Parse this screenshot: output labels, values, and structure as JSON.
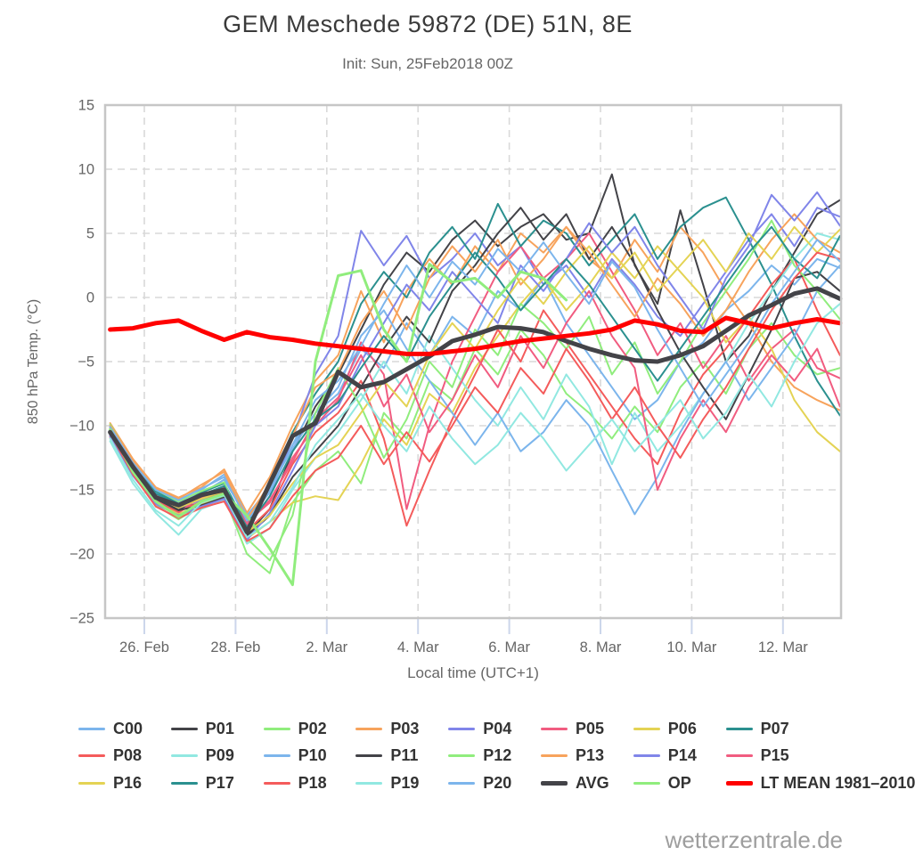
{
  "header": {
    "title": "GEM Meschede 59872 (DE) 51N, 8E",
    "subtitle": "Init: Sun, 25Feb2018 00Z"
  },
  "watermark": "wetterzentrale.de",
  "chart_data": {
    "type": "line",
    "title": "GEM Meschede 59872 (DE) 51N, 8E",
    "subtitle": "Init: Sun, 25Feb2018 00Z",
    "xlabel": "Local time (UTC+1)",
    "ylabel": "850 hPa Temp. (°C)",
    "ylim": [
      -25,
      15
    ],
    "y_ticks": [
      15,
      10,
      5,
      0,
      -5,
      -10,
      -15,
      -20,
      -25
    ],
    "x_ticks": [
      {
        "day": 1,
        "label": "26. Feb"
      },
      {
        "day": 3,
        "label": "28. Feb"
      },
      {
        "day": 5,
        "label": "2. Mar"
      },
      {
        "day": 7,
        "label": "4. Mar"
      },
      {
        "day": 9,
        "label": "6. Mar"
      },
      {
        "day": 11,
        "label": "8. Mar"
      },
      {
        "day": 13,
        "label": "10. Mar"
      },
      {
        "day": 15,
        "label": "12. Mar"
      }
    ],
    "x_axis": {
      "unit": "days from 25 Feb 2018",
      "start_day": 0.25,
      "step_day": 0.5,
      "range_days": [
        0.14,
        16.27
      ]
    },
    "grid": "dashed",
    "legend_position": "bottom",
    "series": [
      {
        "name": "C00",
        "color": "#7cb5ec",
        "line_width": 2,
        "role": "member",
        "values": [
          -10.2,
          -13.0,
          -15.2,
          -16.0,
          -15.3,
          -14.2,
          -17.2,
          -15.0,
          -11.5,
          -9.0,
          -7.5,
          -4.0,
          -5.5,
          -2.0,
          -4.5,
          -1.5,
          -3.0,
          0.5,
          -1.0,
          1.5,
          -2.0,
          -4.5,
          -7.0,
          -9.5,
          -8.0,
          -5.0,
          -3.5,
          -1.0,
          0.5,
          2.5,
          1.0,
          3.0,
          2.3
        ]
      },
      {
        "name": "P01",
        "color": "#434348",
        "line_width": 2,
        "role": "member",
        "values": [
          -10.8,
          -13.4,
          -15.6,
          -16.5,
          -16.0,
          -15.2,
          -18.5,
          -16.5,
          -12.0,
          -8.5,
          -6.0,
          -2.5,
          1.0,
          3.5,
          2.0,
          4.5,
          6.0,
          4.0,
          5.5,
          6.5,
          4.5,
          5.0,
          9.6,
          2.5,
          -0.5,
          6.8,
          1.0,
          -5.0,
          -3.0,
          0.5,
          3.5,
          6.5,
          7.6
        ]
      },
      {
        "name": "P02",
        "color": "#90ed7d",
        "line_width": 2,
        "role": "member",
        "values": [
          -10.0,
          -13.8,
          -16.2,
          -17.3,
          -16.2,
          -15.5,
          -20.0,
          -21.5,
          -16.0,
          -13.5,
          -12.0,
          -14.5,
          -9.0,
          -11.0,
          -6.5,
          -8.0,
          -4.0,
          -6.0,
          -2.5,
          -4.5,
          -7.5,
          -9.0,
          -11.0,
          -8.5,
          -10.5,
          -7.0,
          -5.0,
          -7.5,
          -4.0,
          -2.0,
          -4.5,
          -6.0,
          -5.5
        ]
      },
      {
        "name": "P03",
        "color": "#f7a35c",
        "line_width": 2,
        "role": "member",
        "values": [
          -9.8,
          -12.6,
          -14.8,
          -15.6,
          -14.8,
          -13.4,
          -16.8,
          -14.0,
          -10.0,
          -6.5,
          -4.5,
          0.5,
          -3.5,
          0.5,
          3.0,
          1.0,
          4.0,
          2.0,
          5.0,
          3.5,
          5.5,
          3.0,
          1.5,
          4.5,
          2.0,
          5.5,
          3.5,
          0.5,
          -2.0,
          -5.0,
          -7.0,
          -8.0,
          -8.8
        ]
      },
      {
        "name": "P04",
        "color": "#8085e9",
        "line_width": 2,
        "role": "member",
        "values": [
          -10.5,
          -13.2,
          -15.5,
          -16.4,
          -15.8,
          -15.0,
          -18.0,
          -15.5,
          -11.0,
          -6.0,
          -3.0,
          5.2,
          2.5,
          4.8,
          1.5,
          3.0,
          5.0,
          2.5,
          4.0,
          1.0,
          2.5,
          0.0,
          3.0,
          1.0,
          -1.5,
          -3.0,
          -0.5,
          2.0,
          4.5,
          6.5,
          4.0,
          7.0,
          6.3
        ]
      },
      {
        "name": "P05",
        "color": "#f15c80",
        "line_width": 2,
        "role": "member",
        "values": [
          -10.3,
          -13.5,
          -15.8,
          -16.8,
          -15.5,
          -14.8,
          -17.5,
          -16.0,
          -12.5,
          -10.0,
          -8.0,
          -3.5,
          -6.0,
          -16.5,
          -10.0,
          -5.0,
          -1.5,
          2.0,
          4.0,
          1.5,
          3.0,
          5.0,
          2.0,
          -1.0,
          -4.5,
          -2.0,
          -5.5,
          -3.0,
          -6.5,
          -4.0,
          -2.5,
          -5.5,
          -6.3
        ]
      },
      {
        "name": "P06",
        "color": "#e4d354",
        "line_width": 2,
        "role": "member",
        "values": [
          -10.6,
          -13.7,
          -16.0,
          -16.9,
          -16.1,
          -15.3,
          -18.8,
          -17.5,
          -16.0,
          -15.5,
          -15.8,
          -13.0,
          -9.5,
          -11.5,
          -7.5,
          -9.0,
          -5.5,
          -3.0,
          -0.5,
          1.5,
          -1.0,
          1.0,
          3.5,
          1.5,
          4.0,
          2.0,
          0.0,
          -3.5,
          -1.5,
          -4.0,
          -8.0,
          -10.5,
          -12.0
        ]
      },
      {
        "name": "P07",
        "color": "#2b908f",
        "line_width": 2,
        "role": "member",
        "values": [
          -10.1,
          -12.9,
          -15.1,
          -16.1,
          -15.2,
          -14.5,
          -17.8,
          -14.5,
          -10.5,
          -7.5,
          -5.0,
          -0.5,
          2.0,
          0.0,
          3.5,
          5.5,
          3.0,
          7.3,
          4.0,
          6.0,
          5.0,
          2.5,
          4.5,
          6.5,
          3.0,
          5.5,
          7.0,
          7.8,
          4.5,
          1.0,
          -3.0,
          -6.5,
          -9.2
        ]
      },
      {
        "name": "P08",
        "color": "#f45b5b",
        "line_width": 2,
        "role": "member",
        "values": [
          -10.9,
          -13.6,
          -15.9,
          -16.7,
          -15.9,
          -15.1,
          -18.2,
          -16.5,
          -13.0,
          -10.5,
          -9.0,
          -6.5,
          -11.0,
          -17.8,
          -13.5,
          -9.5,
          -6.0,
          -2.5,
          -5.0,
          -1.0,
          -3.5,
          -6.0,
          -8.5,
          -11.0,
          -13.0,
          -9.0,
          -6.0,
          -4.0,
          -1.5,
          1.0,
          3.0,
          -1.0,
          -4.5
        ]
      },
      {
        "name": "P09",
        "color": "#91e8e1",
        "line_width": 2,
        "role": "member",
        "values": [
          -11.2,
          -14.5,
          -16.8,
          -18.5,
          -16.5,
          -15.8,
          -19.2,
          -18.0,
          -15.0,
          -12.5,
          -10.5,
          -8.0,
          -5.0,
          -7.5,
          -3.0,
          -5.5,
          -8.0,
          -10.0,
          -7.0,
          -9.5,
          -6.0,
          -8.5,
          -13.0,
          -9.0,
          -12.0,
          -10.0,
          -7.5,
          -5.0,
          -2.0,
          0.5,
          3.0,
          5.0,
          4.5
        ]
      },
      {
        "name": "P10",
        "color": "#7cb5ec",
        "line_width": 2,
        "role": "member",
        "values": [
          -10.4,
          -13.1,
          -15.3,
          -16.2,
          -15.0,
          -13.8,
          -17.0,
          -14.8,
          -11.8,
          -9.0,
          -7.0,
          -3.0,
          -1.0,
          -4.0,
          -6.5,
          -9.0,
          -11.5,
          -9.0,
          -12.0,
          -10.5,
          -8.0,
          -10.0,
          -13.5,
          -16.9,
          -14.0,
          -10.5,
          -7.5,
          -5.0,
          -8.0,
          -5.5,
          -3.0,
          0.5,
          2.5
        ]
      },
      {
        "name": "P11",
        "color": "#434348",
        "line_width": 2,
        "role": "member",
        "values": [
          -10.7,
          -13.3,
          -15.7,
          -16.6,
          -16.2,
          -15.6,
          -18.6,
          -17.0,
          -14.0,
          -12.0,
          -10.0,
          -7.0,
          -4.0,
          -1.5,
          -3.5,
          0.5,
          2.5,
          5.0,
          7.0,
          4.5,
          6.5,
          3.0,
          5.5,
          2.6,
          -1.0,
          -4.3,
          -7.0,
          -9.5,
          -6.0,
          -2.5,
          1.5,
          2.0,
          0.5
        ]
      },
      {
        "name": "P12",
        "color": "#90ed7d",
        "line_width": 2,
        "role": "member",
        "values": [
          -9.9,
          -12.8,
          -15.0,
          -15.9,
          -15.1,
          -14.4,
          -18.8,
          -20.5,
          -17.0,
          -9.0,
          -5.5,
          -8.5,
          -12.5,
          -9.5,
          -5.0,
          -7.0,
          -2.5,
          -4.5,
          -0.5,
          -2.0,
          -4.0,
          -1.5,
          -6.0,
          -3.5,
          -7.5,
          -5.0,
          -2.0,
          0.5,
          3.0,
          6.0,
          2.5,
          0.5,
          -1.7
        ]
      },
      {
        "name": "P13",
        "color": "#f7a35c",
        "line_width": 2,
        "role": "member",
        "values": [
          -10.0,
          -12.7,
          -14.9,
          -15.7,
          -14.6,
          -13.6,
          -17.3,
          -14.5,
          -10.8,
          -7.0,
          -5.8,
          -2.0,
          0.5,
          -2.5,
          1.5,
          4.0,
          2.0,
          4.5,
          1.0,
          3.0,
          5.5,
          3.5,
          1.0,
          -1.5,
          1.5,
          -0.5,
          -3.0,
          -1.0,
          2.0,
          4.5,
          6.5,
          4.5,
          3.5
        ]
      },
      {
        "name": "P14",
        "color": "#8085e9",
        "line_width": 2,
        "role": "member",
        "values": [
          -10.8,
          -13.9,
          -16.1,
          -17.0,
          -16.3,
          -15.7,
          -18.9,
          -16.8,
          -13.5,
          -10.0,
          -8.5,
          -5.0,
          -2.0,
          1.0,
          -1.0,
          2.0,
          0.0,
          -2.0,
          2.5,
          0.5,
          3.0,
          5.8,
          3.5,
          5.5,
          2.5,
          0.0,
          -2.5,
          1.5,
          4.0,
          8.0,
          6.0,
          8.2,
          5.6
        ]
      },
      {
        "name": "P15",
        "color": "#f15c80",
        "line_width": 2,
        "role": "member",
        "values": [
          -10.2,
          -13.0,
          -15.4,
          -16.3,
          -15.6,
          -15.0,
          -17.7,
          -15.8,
          -12.8,
          -9.5,
          -7.8,
          -4.5,
          -8.5,
          -6.0,
          -10.5,
          -8.0,
          -4.5,
          -7.0,
          -3.0,
          -5.5,
          -2.0,
          0.5,
          -3.0,
          -5.5,
          -15.0,
          -11.0,
          -8.0,
          -10.5,
          -7.0,
          -4.5,
          -6.5,
          -4.0,
          -8.5
        ]
      },
      {
        "name": "P16",
        "color": "#e4d354",
        "line_width": 2,
        "role": "member",
        "values": [
          -10.5,
          -13.3,
          -15.5,
          -16.4,
          -15.7,
          -15.1,
          -18.3,
          -17.0,
          -14.5,
          -12.5,
          -11.5,
          -9.0,
          -6.5,
          -8.5,
          -4.5,
          -2.0,
          -4.0,
          -1.0,
          1.5,
          -0.5,
          2.0,
          4.0,
          1.5,
          3.5,
          0.5,
          2.5,
          4.5,
          2.0,
          5.0,
          3.0,
          5.5,
          3.5,
          5.3
        ]
      },
      {
        "name": "P17",
        "color": "#2b908f",
        "line_width": 2,
        "role": "member",
        "values": [
          -10.3,
          -13.1,
          -15.3,
          -16.1,
          -15.4,
          -14.7,
          -17.9,
          -15.5,
          -12.0,
          -9.5,
          -8.2,
          -5.5,
          -3.0,
          -5.0,
          -1.5,
          1.0,
          3.5,
          1.5,
          -1.0,
          1.0,
          3.0,
          1.0,
          -1.5,
          -4.0,
          -6.5,
          -4.0,
          -1.5,
          1.0,
          3.5,
          5.5,
          3.0,
          1.5,
          4.8
        ]
      },
      {
        "name": "P18",
        "color": "#f45b5b",
        "line_width": 2,
        "role": "member",
        "values": [
          -10.6,
          -13.8,
          -16.3,
          -17.2,
          -16.4,
          -15.9,
          -19.0,
          -18.0,
          -15.5,
          -13.5,
          -12.5,
          -10.0,
          -13.0,
          -10.5,
          -12.8,
          -10.0,
          -7.0,
          -9.0,
          -5.5,
          -7.5,
          -4.0,
          -6.5,
          -9.5,
          -7.0,
          -10.0,
          -12.5,
          -9.5,
          -7.0,
          -4.0,
          -1.0,
          1.5,
          3.5,
          3.0
        ]
      },
      {
        "name": "P19",
        "color": "#91e8e1",
        "line_width": 2,
        "role": "member",
        "values": [
          -11.0,
          -14.2,
          -16.6,
          -17.8,
          -16.0,
          -15.4,
          -18.7,
          -17.5,
          -14.8,
          -11.5,
          -9.5,
          -7.5,
          -10.0,
          -12.0,
          -8.5,
          -11.0,
          -13.0,
          -11.5,
          -9.0,
          -11.0,
          -13.5,
          -11.5,
          -9.5,
          -12.0,
          -10.0,
          -8.0,
          -11.0,
          -9.0,
          -6.0,
          -8.5,
          -5.0,
          -2.0,
          -0.5
        ]
      },
      {
        "name": "P20",
        "color": "#7cb5ec",
        "line_width": 2,
        "role": "member",
        "values": [
          -10.1,
          -12.9,
          -15.0,
          -15.8,
          -14.9,
          -14.0,
          -17.4,
          -15.2,
          -11.5,
          -8.0,
          -6.5,
          -3.8,
          -0.5,
          2.5,
          0.0,
          2.8,
          1.0,
          3.8,
          2.0,
          4.3,
          1.8,
          -0.5,
          2.8,
          0.8,
          -2.5,
          -5.5,
          -8.5,
          -6.0,
          -3.5,
          -0.5,
          2.0,
          4.5,
          2.8
        ]
      },
      {
        "name": "AVG",
        "color": "#434348",
        "line_width": 5,
        "role": "mean",
        "values": [
          -10.5,
          -13.2,
          -15.6,
          -16.2,
          -15.4,
          -15.0,
          -18.3,
          -14.5,
          -10.8,
          -9.8,
          -5.8,
          -7.0,
          -6.6,
          -5.6,
          -4.6,
          -3.4,
          -2.9,
          -2.3,
          -2.4,
          -2.7,
          -3.4,
          -4.0,
          -4.5,
          -4.9,
          -5.0,
          -4.5,
          -3.8,
          -2.6,
          -1.4,
          -0.6,
          0.3,
          0.7,
          -0.1
        ]
      },
      {
        "name": "OP",
        "color": "#90ed7d",
        "line_width": 3,
        "role": "operational",
        "values": [
          -10.3,
          -13.6,
          -15.9,
          -17.1,
          -15.9,
          -15.3,
          -17.0,
          -19.6,
          -22.4,
          -5.0,
          1.7,
          2.1,
          -2.5,
          -5.0,
          2.6,
          1.2,
          1.5,
          0.0,
          2.0,
          1.5,
          -0.2
        ]
      },
      {
        "name": "LT MEAN 1981–2010",
        "color": "#ff0000",
        "line_width": 5,
        "role": "climate",
        "values": [
          -2.5,
          -2.4,
          -2.0,
          -1.8,
          -2.6,
          -3.3,
          -2.7,
          -3.1,
          -3.3,
          -3.6,
          -3.8,
          -4.0,
          -4.2,
          -4.4,
          -4.4,
          -4.2,
          -4.0,
          -3.7,
          -3.4,
          -3.2,
          -3.0,
          -2.8,
          -2.5,
          -1.8,
          -2.1,
          -2.6,
          -2.7,
          -1.6,
          -2.0,
          -2.4,
          -2.0,
          -1.7,
          -2.0
        ]
      }
    ]
  }
}
